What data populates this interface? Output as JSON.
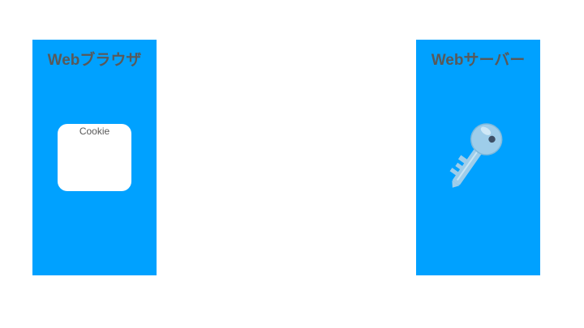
{
  "browser": {
    "title": "Webブラウザ",
    "cookie": {
      "label": "Cookie"
    }
  },
  "server": {
    "title": "Webサーバー",
    "icon": "key-icon"
  },
  "colors": {
    "panel": "#00a1ff",
    "title_text": "#595959",
    "card": "#ffffff",
    "key": "#9ecdea"
  }
}
